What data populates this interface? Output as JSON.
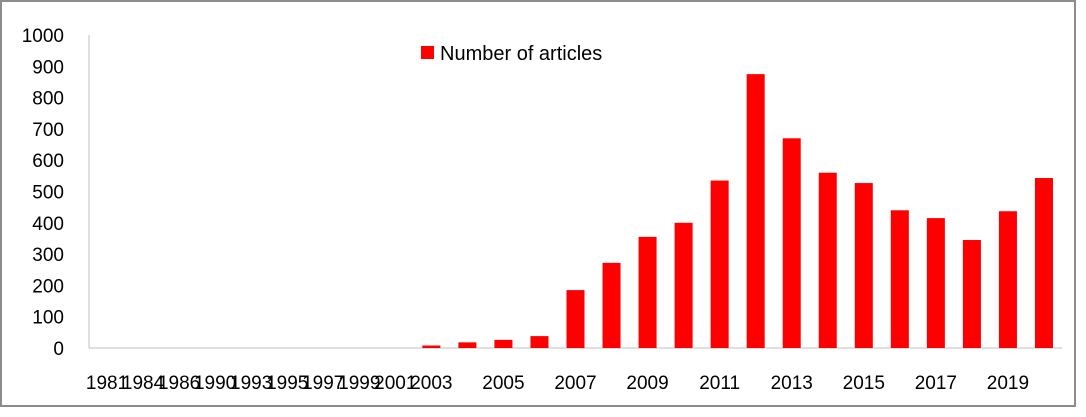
{
  "chart_data": {
    "type": "bar",
    "title": "",
    "xlabel": "",
    "ylabel": "",
    "ylim": [
      0,
      1000
    ],
    "yticks": [
      0,
      100,
      200,
      300,
      400,
      500,
      600,
      700,
      800,
      900,
      1000
    ],
    "grid": false,
    "legend": "top-center",
    "bar_color": "#ff0000",
    "categories": [
      "1981",
      "1984",
      "1986",
      "1990",
      "1993",
      "1995",
      "1997",
      "1999",
      "2001",
      "2003",
      "2004",
      "2005",
      "2006",
      "2007",
      "2008",
      "2009",
      "2010",
      "2011",
      "2012",
      "2013",
      "2014",
      "2015",
      "2016",
      "2017",
      "2018",
      "2019",
      "2020"
    ],
    "xtick_labels": [
      "1981",
      "1984",
      "1986",
      "1990",
      "1993",
      "1995",
      "1997",
      "1999",
      "2001",
      "2003",
      "",
      "2005",
      "",
      "2007",
      "",
      "2009",
      "",
      "2011",
      "",
      "2013",
      "",
      "2015",
      "",
      "2017",
      "",
      "2019",
      ""
    ],
    "series": [
      {
        "name": "Number of articles",
        "values": [
          0,
          0,
          0,
          0,
          0,
          0,
          0,
          0,
          0,
          8,
          18,
          26,
          38,
          185,
          272,
          355,
          400,
          535,
          875,
          670,
          560,
          527,
          440,
          415,
          345,
          437,
          543
        ]
      }
    ]
  }
}
